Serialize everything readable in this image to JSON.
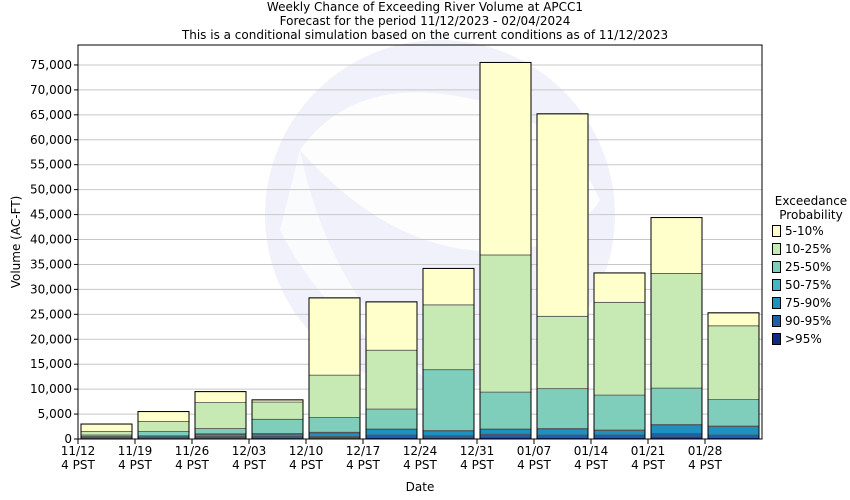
{
  "chart_data": {
    "type": "bar",
    "stacked": true,
    "title": "Weekly Chance of Exceeding River Volume at APCC1",
    "subtitle_1": "Forecast for the period 11/12/2023 - 02/04/2024",
    "subtitle_2": "This is a conditional simulation based on the current conditions as of 11/12/2023",
    "xlabel": "Date",
    "ylabel": "Volume (AC-FT)",
    "ylim": [
      0,
      79000
    ],
    "yticks": [
      0,
      5000,
      10000,
      15000,
      20000,
      25000,
      30000,
      35000,
      40000,
      45000,
      50000,
      55000,
      60000,
      65000,
      70000,
      75000
    ],
    "ytick_labels": [
      "0",
      "5,000",
      "10,000",
      "15,000",
      "20,000",
      "25,000",
      "30,000",
      "35,000",
      "40,000",
      "45,000",
      "50,000",
      "55,000",
      "60,000",
      "65,000",
      "70,000",
      "75,000"
    ],
    "categories": [
      "11/12",
      "11/19",
      "11/26",
      "12/03",
      "12/10",
      "12/17",
      "12/24",
      "12/31",
      "01/07",
      "01/14",
      "01/21",
      "01/28"
    ],
    "category_sublabel": "4 PST",
    "grid": true,
    "legend_position": "right",
    "legend_title_1": "Exceedance",
    "legend_title_2": "Probability",
    "series": [
      {
        "name": ">95%",
        "color": "#0c2c84",
        "values": [
          100,
          150,
          200,
          250,
          200,
          300,
          250,
          350,
          300,
          300,
          400,
          300
        ]
      },
      {
        "name": "90-95%",
        "color": "#225ea8",
        "values": [
          150,
          200,
          300,
          300,
          300,
          500,
          400,
          600,
          500,
          500,
          700,
          500
        ]
      },
      {
        "name": "75-90%",
        "color": "#1d91c0",
        "values": [
          200,
          250,
          400,
          400,
          700,
          1100,
          950,
          950,
          1200,
          900,
          1700,
          1700
        ]
      },
      {
        "name": "50-75%",
        "color": "#41b6c4",
        "values": [
          50,
          50,
          150,
          150,
          150,
          100,
          100,
          100,
          100,
          100,
          100,
          100
        ]
      },
      {
        "name": "25-50%",
        "color": "#7fcdbb",
        "values": [
          300,
          850,
          1050,
          2850,
          2950,
          4000,
          12200,
          7400,
          8000,
          7000,
          7300,
          5300
        ]
      },
      {
        "name": "10-25%",
        "color": "#c7e9b4",
        "values": [
          700,
          2000,
          5200,
          3450,
          8500,
          11800,
          13000,
          27500,
          14500,
          18600,
          23000,
          14800
        ]
      },
      {
        "name": "5-10%",
        "color": "#ffffcc",
        "values": [
          1500,
          2000,
          2200,
          450,
          15500,
          9700,
          7300,
          38600,
          40600,
          5900,
          11200,
          2600
        ]
      }
    ]
  }
}
